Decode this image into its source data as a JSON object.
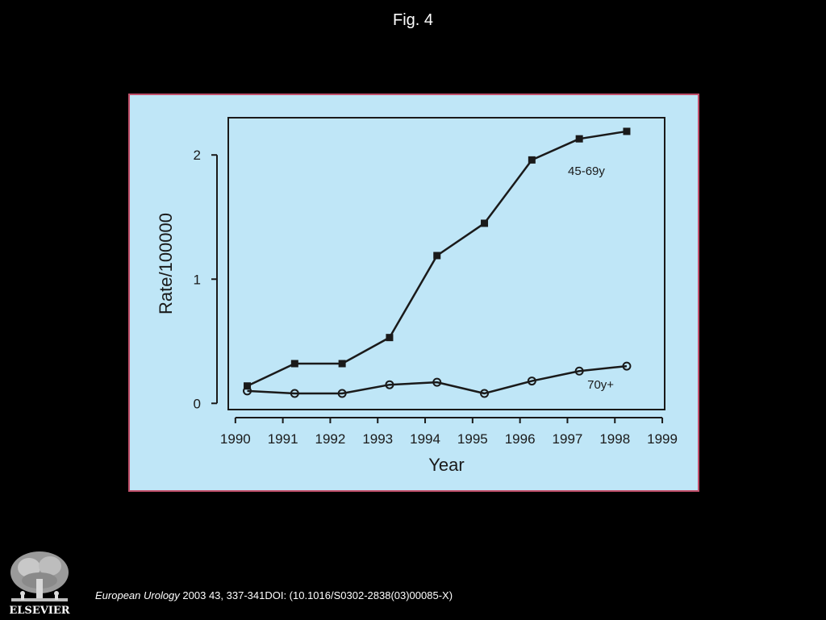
{
  "slide": {
    "title": "Fig. 4",
    "citation_journal": "European Urology",
    "citation_rest": " 2003 43, 337-341DOI: (10.1016/S0302-2838(03)00085-X)",
    "publisher_logo_text": "ELSEVIER"
  },
  "colors": {
    "background": "#000000",
    "panel": "#bfe6f7",
    "panel_border": "#c2506b",
    "ink": "#1a1a1a"
  },
  "chart_data": {
    "type": "line",
    "title": "",
    "xlabel": "Year",
    "ylabel": "Rate/100000",
    "xlim": [
      1989.85,
      1999.05
    ],
    "ylim": [
      -0.05,
      2.3
    ],
    "x_ticks": [
      1990,
      1991,
      1992,
      1993,
      1994,
      1995,
      1996,
      1997,
      1998,
      1999
    ],
    "y_ticks": [
      0,
      1,
      2
    ],
    "grid": false,
    "legend": "none (series labelled inline)",
    "series": [
      {
        "name": "45-69y",
        "marker": "filled-square",
        "label_at": [
          1997.4,
          1.84
        ],
        "x": [
          1990.25,
          1991.25,
          1992.25,
          1993.25,
          1994.25,
          1995.25,
          1996.25,
          1997.25,
          1998.25
        ],
        "y": [
          0.14,
          0.32,
          0.32,
          0.53,
          1.19,
          1.45,
          1.96,
          2.13,
          2.19
        ]
      },
      {
        "name": "70y+",
        "marker": "open-circle",
        "label_at": [
          1997.7,
          0.12
        ],
        "x": [
          1990.25,
          1991.25,
          1992.25,
          1993.25,
          1994.25,
          1995.25,
          1996.25,
          1997.25,
          1998.25
        ],
        "y": [
          0.1,
          0.08,
          0.08,
          0.15,
          0.17,
          0.08,
          0.18,
          0.26,
          0.3
        ]
      }
    ]
  }
}
